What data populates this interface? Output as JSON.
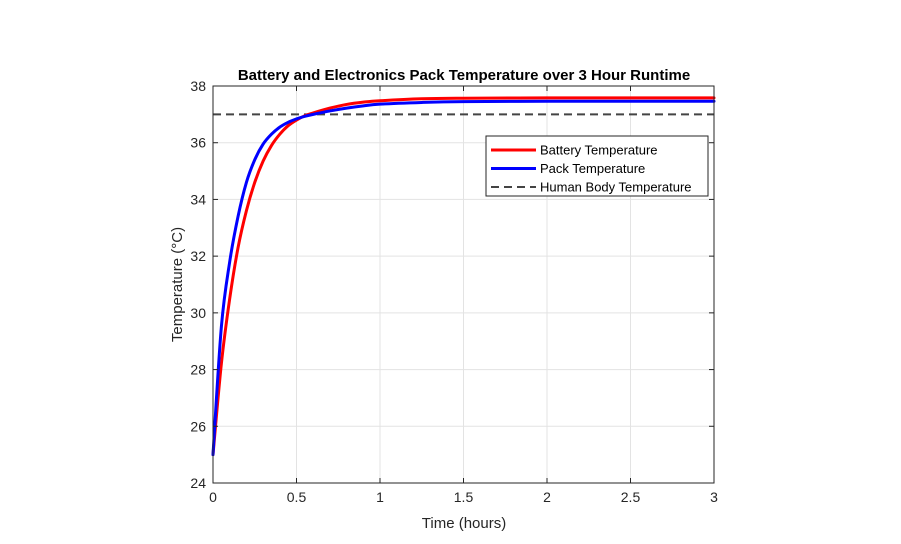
{
  "chart_data": {
    "type": "line",
    "title": "Battery and Electronics Pack Temperature over 3 Hour Runtime",
    "xlabel": "Time (hours)",
    "ylabel": "Temperature (°C)",
    "xlim": [
      0,
      3
    ],
    "ylim": [
      24,
      38
    ],
    "xticks": [
      0,
      0.5,
      1,
      1.5,
      2,
      2.5,
      3
    ],
    "xtick_labels": [
      "0",
      "0.5",
      "1",
      "1.5",
      "2",
      "2.5",
      "3"
    ],
    "yticks": [
      24,
      26,
      28,
      30,
      32,
      34,
      36,
      38
    ],
    "ytick_labels": [
      "24",
      "26",
      "28",
      "30",
      "32",
      "34",
      "36",
      "38"
    ],
    "grid": true,
    "legend_position": "top-right",
    "series": [
      {
        "name": "Battery Temperature",
        "color": "#ff0000",
        "style": "solid",
        "x": [
          0,
          0.05,
          0.1,
          0.15,
          0.2,
          0.25,
          0.3,
          0.35,
          0.4,
          0.45,
          0.5,
          0.55,
          0.6,
          0.7,
          0.8,
          0.9,
          1.0,
          1.25,
          1.5,
          2.0,
          2.5,
          3.0
        ],
        "values": [
          25.0,
          28.2,
          30.5,
          32.3,
          33.6,
          34.6,
          35.35,
          35.9,
          36.3,
          36.6,
          36.8,
          36.95,
          37.05,
          37.22,
          37.35,
          37.43,
          37.48,
          37.55,
          37.57,
          37.58,
          37.58,
          37.58
        ]
      },
      {
        "name": "Pack Temperature",
        "color": "#0000ff",
        "style": "solid",
        "x": [
          0,
          0.05,
          0.1,
          0.15,
          0.2,
          0.25,
          0.3,
          0.35,
          0.4,
          0.45,
          0.5,
          0.55,
          0.6,
          0.7,
          0.8,
          0.9,
          1.0,
          1.25,
          1.5,
          2.0,
          2.5,
          3.0
        ],
        "values": [
          25.0,
          29.5,
          31.8,
          33.4,
          34.6,
          35.4,
          35.95,
          36.3,
          36.55,
          36.72,
          36.84,
          36.93,
          37.0,
          37.12,
          37.22,
          37.3,
          37.36,
          37.42,
          37.45,
          37.46,
          37.46,
          37.46
        ]
      },
      {
        "name": "Human Body Temperature",
        "color": "#444444",
        "style": "dashed",
        "x": [
          0,
          3
        ],
        "values": [
          37,
          37
        ]
      }
    ]
  }
}
